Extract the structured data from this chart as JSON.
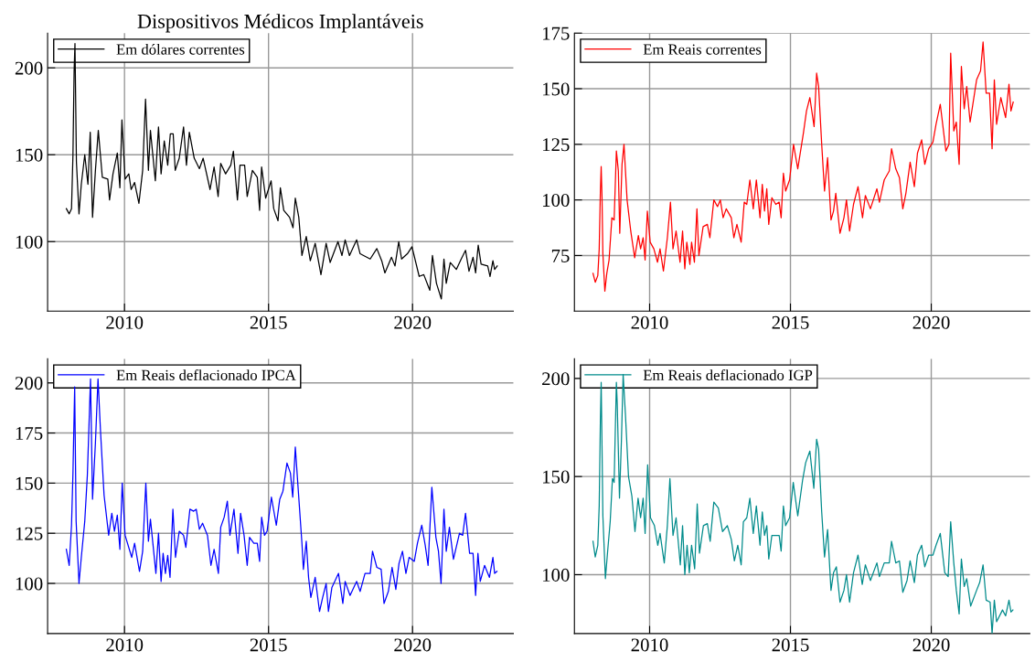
{
  "chart_data": [
    {
      "type": "line",
      "title": "Dispositivos Médicos Implantáveis",
      "xlim": [
        2007.33,
        2023.5
      ],
      "ylim": [
        60,
        220
      ],
      "xticks": [
        2010,
        2015,
        2020
      ],
      "yticks": [
        100,
        150,
        200
      ],
      "grid": true,
      "legend": "top left",
      "x": [
        2007.98,
        2008.08,
        2008.16,
        2008.21,
        2008.25,
        2008.28,
        2008.33,
        2008.42,
        2008.5,
        2008.62,
        2008.73,
        2008.81,
        2008.89,
        2008.99,
        2009.09,
        2009.23,
        2009.42,
        2009.48,
        2009.6,
        2009.75,
        2009.84,
        2009.91,
        2010.02,
        2010.15,
        2010.23,
        2010.35,
        2010.5,
        2010.63,
        2010.73,
        2010.83,
        2010.9,
        2011.07,
        2011.18,
        2011.27,
        2011.38,
        2011.5,
        2011.59,
        2011.69,
        2011.76,
        2011.9,
        2012.05,
        2012.15,
        2012.25,
        2012.42,
        2012.6,
        2012.73,
        2012.97,
        2013.11,
        2013.25,
        2013.34,
        2013.51,
        2013.69,
        2013.78,
        2013.92,
        2014.01,
        2014.17,
        2014.26,
        2014.44,
        2014.61,
        2014.69,
        2014.76,
        2014.9,
        2015.09,
        2015.18,
        2015.33,
        2015.41,
        2015.53,
        2015.73,
        2015.85,
        2015.93,
        2016.05,
        2016.16,
        2016.31,
        2016.45,
        2016.62,
        2016.82,
        2017.0,
        2017.14,
        2017.41,
        2017.55,
        2017.66,
        2017.81,
        2018.06,
        2018.18,
        2018.53,
        2018.76,
        2018.93,
        2019.04,
        2019.27,
        2019.39,
        2019.52,
        2019.62,
        2019.82,
        2019.98,
        2020.23,
        2020.39,
        2020.6,
        2020.69,
        2020.83,
        2021.0,
        2021.09,
        2021.17,
        2021.31,
        2021.52,
        2021.69,
        2021.84,
        2021.96,
        2022.1,
        2022.19,
        2022.28,
        2022.38,
        2022.61,
        2022.69,
        2022.79,
        2022.85,
        2022.94
      ],
      "series": [
        {
          "name": "Em dólares correntes",
          "color": "#000000",
          "values": [
            119,
            116,
            119,
            150,
            198,
            214,
            146,
            116,
            133,
            150,
            133,
            163,
            114,
            141,
            164,
            137,
            136,
            124,
            139,
            151,
            131,
            170,
            136,
            139,
            130,
            134,
            122,
            141,
            182,
            141,
            164,
            135,
            166,
            139,
            158,
            144,
            162,
            162,
            141,
            148,
            166,
            144,
            163,
            148,
            142,
            148,
            130,
            143,
            126,
            145,
            139,
            144,
            152,
            124,
            144,
            144,
            126,
            141,
            137,
            118,
            143,
            125,
            135,
            119,
            112,
            131,
            118,
            114,
            108,
            125,
            114,
            92,
            103,
            89,
            99,
            81,
            99,
            88,
            100,
            92,
            101,
            92,
            101,
            93,
            90,
            96,
            89,
            82,
            91,
            86,
            100,
            90,
            93,
            97,
            80,
            81,
            72,
            92,
            76,
            67,
            90,
            76,
            88,
            84,
            90,
            95,
            83,
            91,
            82,
            98,
            87,
            86,
            80,
            89,
            84,
            86
          ]
        }
      ]
    },
    {
      "type": "line",
      "xlim": [
        2007.33,
        2023.5
      ],
      "ylim": [
        50,
        175
      ],
      "xticks": [
        2010,
        2015,
        2020
      ],
      "yticks": [
        75,
        100,
        125,
        150,
        175
      ],
      "grid": true,
      "legend": "top left",
      "x": [
        2007.99,
        2008.07,
        2008.16,
        2008.21,
        2008.25,
        2008.28,
        2008.31,
        2008.34,
        2008.41,
        2008.48,
        2008.56,
        2008.66,
        2008.74,
        2008.82,
        2008.89,
        2008.94,
        2009.02,
        2009.09,
        2009.2,
        2009.33,
        2009.47,
        2009.6,
        2009.68,
        2009.77,
        2009.84,
        2009.92,
        2010.02,
        2010.15,
        2010.28,
        2010.37,
        2010.49,
        2010.63,
        2010.74,
        2010.83,
        2010.94,
        2011.08,
        2011.17,
        2011.25,
        2011.32,
        2011.43,
        2011.49,
        2011.59,
        2011.68,
        2011.75,
        2011.9,
        2012.05,
        2012.14,
        2012.28,
        2012.41,
        2012.51,
        2012.61,
        2012.72,
        2012.9,
        2012.99,
        2013.1,
        2013.25,
        2013.36,
        2013.45,
        2013.56,
        2013.68,
        2013.79,
        2013.92,
        2014.0,
        2014.08,
        2014.16,
        2014.23,
        2014.34,
        2014.48,
        2014.6,
        2014.67,
        2014.75,
        2014.83,
        2014.97,
        2015.11,
        2015.26,
        2015.36,
        2015.46,
        2015.57,
        2015.69,
        2015.84,
        2015.93,
        2016.0,
        2016.11,
        2016.21,
        2016.32,
        2016.44,
        2016.53,
        2016.61,
        2016.76,
        2016.9,
        2016.99,
        2017.1,
        2017.24,
        2017.4,
        2017.56,
        2017.66,
        2017.84,
        2018.07,
        2018.16,
        2018.33,
        2018.51,
        2018.59,
        2018.74,
        2018.87,
        2018.99,
        2019.1,
        2019.25,
        2019.4,
        2019.51,
        2019.66,
        2019.77,
        2019.91,
        2020.06,
        2020.17,
        2020.32,
        2020.52,
        2020.63,
        2020.69,
        2020.8,
        2020.89,
        2020.99,
        2021.07,
        2021.17,
        2021.26,
        2021.38,
        2021.61,
        2021.75,
        2021.84,
        2021.95,
        2022.07,
        2022.16,
        2022.24,
        2022.32,
        2022.47,
        2022.64,
        2022.76,
        2022.83,
        2022.91
      ],
      "series": [
        {
          "name": "Em Reais correntes",
          "color": "#ff0000",
          "values": [
            67,
            63,
            66,
            78,
            103,
            115,
            101,
            76,
            59,
            67,
            73,
            92,
            91,
            122,
            113,
            85,
            116,
            125,
            100,
            86,
            74,
            84,
            78,
            83,
            73,
            95,
            81,
            78,
            72,
            78,
            68,
            83,
            99,
            78,
            86,
            72,
            86,
            69,
            81,
            71,
            81,
            72,
            96,
            75,
            88,
            89,
            83,
            100,
            97,
            100,
            92,
            96,
            92,
            83,
            89,
            81,
            99,
            98,
            109,
            96,
            109,
            92,
            107,
            95,
            105,
            89,
            101,
            98,
            99,
            92,
            112,
            104,
            109,
            125,
            114,
            122,
            130,
            140,
            146,
            133,
            157,
            151,
            125,
            104,
            119,
            91,
            95,
            103,
            85,
            92,
            100,
            86,
            98,
            106,
            92,
            102,
            96,
            105,
            99,
            109,
            113,
            123,
            114,
            110,
            96,
            103,
            117,
            106,
            121,
            127,
            116,
            123,
            126,
            134,
            143,
            122,
            125,
            166,
            131,
            135,
            116,
            160,
            141,
            151,
            135,
            154,
            158,
            171,
            148,
            148,
            123,
            154,
            134,
            146,
            137,
            152,
            140,
            144
          ]
        }
      ]
    },
    {
      "type": "line",
      "xlim": [
        2007.33,
        2023.5
      ],
      "ylim": [
        75,
        212
      ],
      "xticks": [
        2010,
        2015,
        2020
      ],
      "yticks": [
        100,
        125,
        150,
        175,
        200
      ],
      "grid": true,
      "legend": "top left",
      "x": [
        2007.98,
        2008.08,
        2008.16,
        2008.21,
        2008.25,
        2008.27,
        2008.32,
        2008.42,
        2008.5,
        2008.62,
        2008.71,
        2008.79,
        2008.82,
        2008.89,
        2008.99,
        2009.08,
        2009.17,
        2009.29,
        2009.45,
        2009.56,
        2009.65,
        2009.75,
        2009.84,
        2009.92,
        2010.02,
        2010.25,
        2010.35,
        2010.52,
        2010.63,
        2010.74,
        2010.83,
        2010.9,
        2011.09,
        2011.18,
        2011.27,
        2011.34,
        2011.42,
        2011.5,
        2011.58,
        2011.68,
        2011.77,
        2011.9,
        2012.05,
        2012.13,
        2012.27,
        2012.4,
        2012.49,
        2012.6,
        2012.71,
        2012.88,
        2013.0,
        2013.11,
        2013.26,
        2013.34,
        2013.46,
        2013.57,
        2013.66,
        2013.8,
        2013.94,
        2014.03,
        2014.15,
        2014.26,
        2014.34,
        2014.49,
        2014.61,
        2014.69,
        2014.76,
        2014.86,
        2014.95,
        2015.1,
        2015.27,
        2015.39,
        2015.5,
        2015.64,
        2015.76,
        2015.84,
        2015.93,
        2016.02,
        2016.16,
        2016.21,
        2016.31,
        2016.39,
        2016.47,
        2016.62,
        2016.77,
        2016.88,
        2017.0,
        2017.08,
        2017.2,
        2017.43,
        2017.58,
        2017.66,
        2017.83,
        2018.06,
        2018.18,
        2018.35,
        2018.53,
        2018.61,
        2018.76,
        2018.91,
        2019.01,
        2019.16,
        2019.29,
        2019.42,
        2019.53,
        2019.65,
        2019.77,
        2019.88,
        2020.06,
        2020.17,
        2020.32,
        2020.44,
        2020.54,
        2020.67,
        2020.81,
        2020.9,
        2020.99,
        2021.09,
        2021.17,
        2021.28,
        2021.42,
        2021.63,
        2021.74,
        2021.84,
        2021.98,
        2022.1,
        2022.19,
        2022.27,
        2022.35,
        2022.5,
        2022.67,
        2022.79,
        2022.85,
        2022.93
      ],
      "series": [
        {
          "name": "Em Reais deflacionado IPCA",
          "color": "#0000ff",
          "values": [
            117,
            109,
            129,
            155,
            184,
            198,
            131,
            100,
            113,
            131,
            154,
            189,
            202,
            142,
            170,
            202,
            175,
            144,
            124,
            135,
            126,
            134,
            117,
            150,
            124,
            113,
            120,
            106,
            116,
            150,
            121,
            132,
            105,
            125,
            101,
            115,
            105,
            114,
            103,
            137,
            113,
            126,
            124,
            118,
            137,
            136,
            137,
            127,
            130,
            124,
            109,
            117,
            105,
            128,
            133,
            141,
            124,
            137,
            115,
            135,
            124,
            109,
            123,
            120,
            120,
            111,
            133,
            124,
            126,
            143,
            129,
            142,
            146,
            160,
            155,
            143,
            168,
            149,
            120,
            107,
            121,
            103,
            93,
            103,
            86,
            93,
            100,
            86,
            98,
            105,
            90,
            101,
            94,
            101,
            96,
            105,
            105,
            116,
            108,
            107,
            90,
            96,
            108,
            97,
            110,
            116,
            105,
            113,
            111,
            120,
            129,
            119,
            109,
            148,
            123,
            116,
            100,
            137,
            116,
            128,
            112,
            125,
            124,
            135,
            115,
            115,
            94,
            115,
            101,
            109,
            103,
            113,
            105,
            106
          ]
        }
      ]
    },
    {
      "type": "line",
      "xlim": [
        2007.33,
        2023.5
      ],
      "ylim": [
        70,
        210
      ],
      "xticks": [
        2010,
        2015,
        2020
      ],
      "yticks": [
        100,
        150,
        200
      ],
      "grid": true,
      "legend": "top left",
      "x": [
        2007.99,
        2008.07,
        2008.16,
        2008.21,
        2008.25,
        2008.28,
        2008.31,
        2008.34,
        2008.43,
        2008.51,
        2008.6,
        2008.68,
        2008.74,
        2008.82,
        2008.85,
        2008.93,
        2009.0,
        2009.06,
        2009.14,
        2009.25,
        2009.37,
        2009.48,
        2009.59,
        2009.68,
        2009.77,
        2009.84,
        2009.93,
        2010.03,
        2010.17,
        2010.29,
        2010.37,
        2010.52,
        2010.63,
        2010.72,
        2010.83,
        2010.94,
        2011.09,
        2011.17,
        2011.25,
        2011.33,
        2011.41,
        2011.49,
        2011.6,
        2011.69,
        2011.77,
        2011.91,
        2012.05,
        2012.15,
        2012.28,
        2012.44,
        2012.59,
        2012.76,
        2012.9,
        2013.01,
        2013.13,
        2013.25,
        2013.33,
        2013.45,
        2013.56,
        2013.68,
        2013.79,
        2013.92,
        2014.0,
        2014.08,
        2014.16,
        2014.23,
        2014.34,
        2014.6,
        2014.67,
        2014.75,
        2014.83,
        2014.97,
        2015.1,
        2015.26,
        2015.43,
        2015.54,
        2015.69,
        2015.83,
        2015.93,
        2016.0,
        2016.11,
        2016.21,
        2016.32,
        2016.44,
        2016.53,
        2016.63,
        2016.76,
        2016.9,
        2016.99,
        2017.1,
        2017.24,
        2017.4,
        2017.55,
        2017.66,
        2017.84,
        2018.07,
        2018.16,
        2018.33,
        2018.51,
        2018.59,
        2018.74,
        2018.87,
        2018.99,
        2019.14,
        2019.25,
        2019.4,
        2019.51,
        2019.66,
        2019.77,
        2019.91,
        2020.06,
        2020.17,
        2020.32,
        2020.48,
        2020.6,
        2020.69,
        2020.8,
        2020.89,
        2020.99,
        2021.07,
        2021.17,
        2021.26,
        2021.4,
        2021.61,
        2021.72,
        2021.84,
        2021.95,
        2022.09,
        2022.16,
        2022.24,
        2022.32,
        2022.53,
        2022.64,
        2022.76,
        2022.83,
        2022.9
      ],
      "series": [
        {
          "name": "Em Reais deflacionado IGP",
          "color": "#008b8b",
          "values": [
            117,
            109,
            115,
            135,
            177,
            198,
            165,
            130,
            98,
            112,
            127,
            149,
            147,
            198,
            187,
            139,
            169,
            202,
            182,
            150,
            140,
            122,
            139,
            129,
            139,
            121,
            156,
            129,
            125,
            115,
            121,
            106,
            125,
            149,
            120,
            129,
            105,
            125,
            100,
            115,
            101,
            115,
            103,
            136,
            111,
            125,
            126,
            117,
            137,
            134,
            122,
            125,
            118,
            107,
            115,
            105,
            127,
            129,
            139,
            121,
            135,
            115,
            132,
            120,
            125,
            108,
            120,
            120,
            112,
            135,
            125,
            129,
            147,
            130,
            148,
            157,
            163,
            144,
            169,
            164,
            132,
            109,
            123,
            92,
            101,
            104,
            86,
            92,
            100,
            86,
            101,
            110,
            95,
            105,
            97,
            106,
            99,
            106,
            106,
            117,
            106,
            107,
            91,
            97,
            107,
            96,
            110,
            115,
            104,
            110,
            110,
            115,
            121,
            101,
            99,
            127,
            106,
            92,
            80,
            108,
            94,
            98,
            84,
            92,
            96,
            105,
            87,
            86,
            70,
            87,
            76,
            82,
            79,
            87,
            81,
            82
          ]
        }
      ]
    }
  ]
}
